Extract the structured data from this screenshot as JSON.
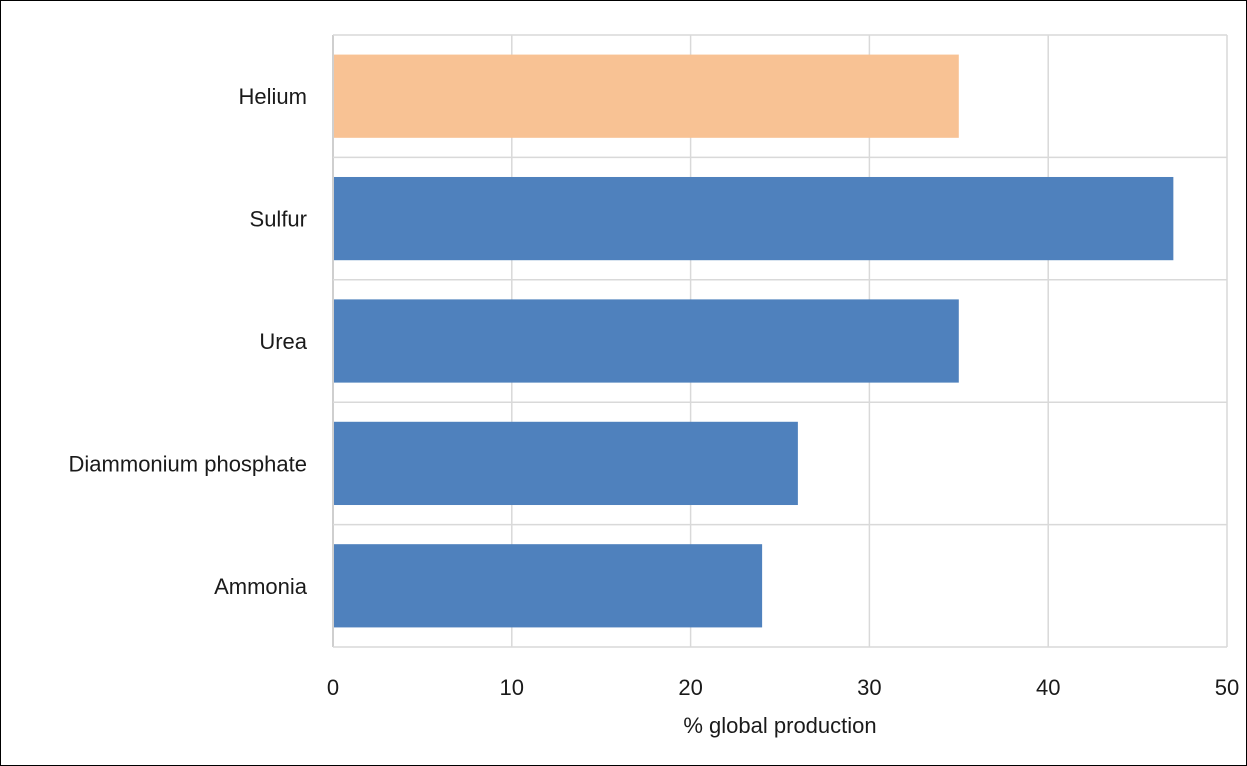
{
  "chart_data": {
    "type": "bar",
    "orientation": "horizontal",
    "categories": [
      "Helium",
      "Sulfur",
      "Urea",
      "Diammonium phosphate",
      "Ammonia"
    ],
    "values": [
      35,
      47,
      35,
      26,
      24
    ],
    "bar_colors": [
      "#f8c294",
      "#4f81bd",
      "#4f81bd",
      "#4f81bd",
      "#4f81bd"
    ],
    "title": "",
    "xlabel": "% global production",
    "ylabel": "",
    "xlim": [
      0,
      50
    ],
    "xticks": [
      0,
      10,
      20,
      30,
      40,
      50
    ],
    "grid": true,
    "legend": "none"
  },
  "colors": {
    "grid": "#d9d9d9",
    "axis": "#bfbfbf",
    "highlight": "#f8c294",
    "default_bar": "#4f81bd"
  }
}
